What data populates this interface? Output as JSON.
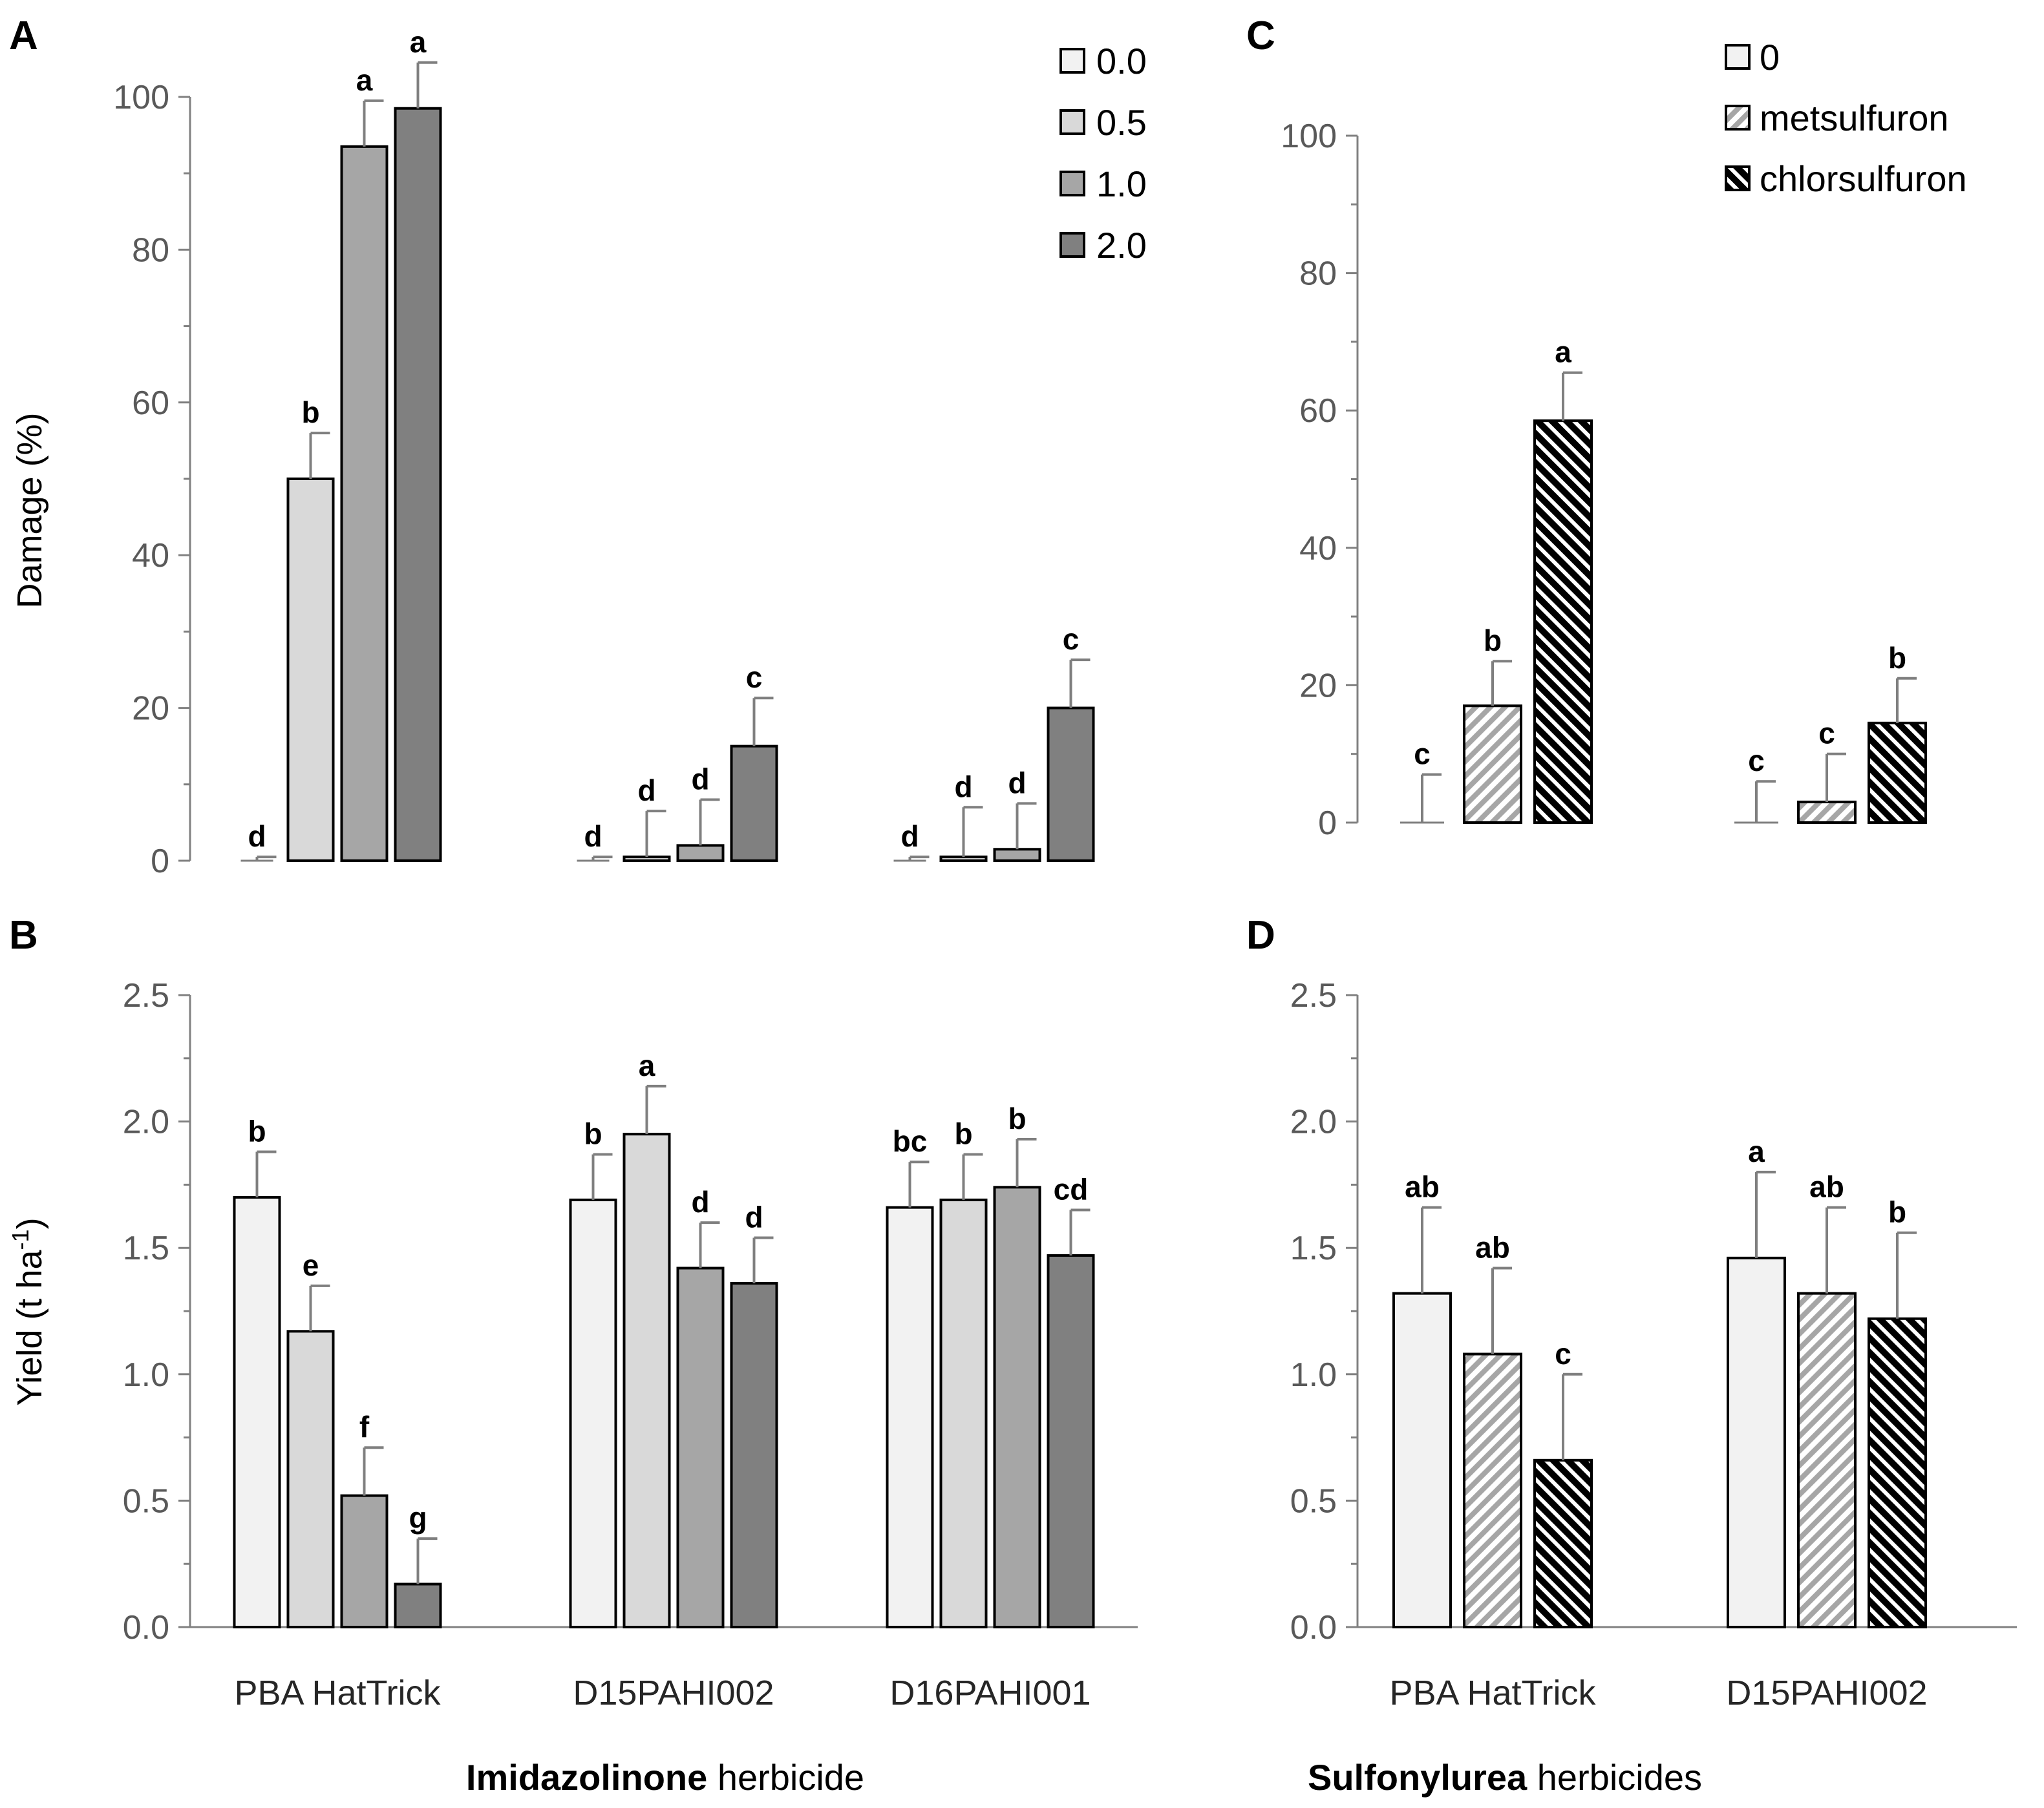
{
  "chart_data": [
    {
      "panel": "A",
      "type": "bar",
      "ylabel": "Damage (%)",
      "ylim": [
        0,
        100
      ],
      "yticks": [
        0,
        20,
        40,
        60,
        80,
        100
      ],
      "categories": [
        "PBA HatTrick",
        "D15PAHI002",
        "D16PAHI001"
      ],
      "legend": [
        "0.0",
        "0.5",
        "1.0",
        "2.0"
      ],
      "series": [
        {
          "name": "0.0",
          "values": [
            0,
            0,
            0
          ],
          "errors": [
            0.5,
            0.5,
            0.5
          ],
          "letters": [
            "d",
            "d",
            "d"
          ]
        },
        {
          "name": "0.5",
          "values": [
            50,
            0.5,
            0.5
          ],
          "errors": [
            6,
            6,
            6.5
          ],
          "letters": [
            "b",
            "d",
            "d"
          ]
        },
        {
          "name": "1.0",
          "values": [
            93.5,
            2,
            1.5
          ],
          "errors": [
            6,
            6,
            6
          ],
          "letters": [
            "a",
            "d",
            "d"
          ]
        },
        {
          "name": "2.0",
          "values": [
            98.5,
            15,
            20
          ],
          "errors": [
            6,
            6.3,
            6.3
          ],
          "letters": [
            "a",
            "c",
            "c"
          ]
        }
      ]
    },
    {
      "panel": "B",
      "type": "bar",
      "ylabel": "Yield (t ha",
      "ylabel_sup": "-1",
      "ylabel_end": ")",
      "ylim": [
        0,
        2.5
      ],
      "yticks": [
        "0.0",
        "0.5",
        "1.0",
        "1.5",
        "2.0",
        "2.5"
      ],
      "categories": [
        "PBA HatTrick",
        "D15PAHI002",
        "D16PAHI001"
      ],
      "xgroup_bold": "Imidazolinone",
      "xgroup_rest": " herbicide",
      "series": [
        {
          "name": "0.0",
          "values": [
            1.7,
            1.69,
            1.66
          ],
          "errors": [
            0.18,
            0.18,
            0.18
          ],
          "letters": [
            "b",
            "b",
            "bc"
          ]
        },
        {
          "name": "0.5",
          "values": [
            1.17,
            1.95,
            1.69
          ],
          "errors": [
            0.18,
            0.19,
            0.18
          ],
          "letters": [
            "e",
            "a",
            "b"
          ]
        },
        {
          "name": "1.0",
          "values": [
            0.52,
            1.42,
            1.74
          ],
          "errors": [
            0.19,
            0.18,
            0.19
          ],
          "letters": [
            "f",
            "d",
            "b"
          ]
        },
        {
          "name": "2.0",
          "values": [
            0.17,
            1.36,
            1.47
          ],
          "errors": [
            0.18,
            0.18,
            0.18
          ],
          "letters": [
            "g",
            "d",
            "cd"
          ]
        }
      ]
    },
    {
      "panel": "C",
      "type": "bar",
      "ylabel": "",
      "ylim": [
        0,
        100
      ],
      "yticks": [
        0,
        20,
        40,
        60,
        80,
        100
      ],
      "categories": [
        "PBA HatTrick",
        "D15PAHI002"
      ],
      "legend": [
        "0",
        "metsulfuron",
        "chlorsulfuron"
      ],
      "series": [
        {
          "name": "0",
          "values": [
            0,
            0
          ],
          "errors": [
            7,
            6
          ],
          "letters": [
            "c",
            "c"
          ]
        },
        {
          "name": "metsulfuron",
          "values": [
            17,
            3
          ],
          "errors": [
            6.5,
            7
          ],
          "letters": [
            "b",
            "c"
          ]
        },
        {
          "name": "chlorsulfuron",
          "values": [
            58.5,
            14.5
          ],
          "errors": [
            7,
            6.5
          ],
          "letters": [
            "a",
            "b"
          ]
        }
      ]
    },
    {
      "panel": "D",
      "type": "bar",
      "ylabel": "",
      "ylim": [
        0,
        2.5
      ],
      "yticks": [
        "0.0",
        "0.5",
        "1.0",
        "1.5",
        "2.0",
        "2.5"
      ],
      "categories": [
        "PBA HatTrick",
        "D15PAHI002"
      ],
      "xgroup_bold": "Sulfonylurea",
      "xgroup_rest": " herbicides",
      "series": [
        {
          "name": "0",
          "values": [
            1.32,
            1.46
          ],
          "errors": [
            0.34,
            0.34
          ],
          "letters": [
            "ab",
            "a"
          ]
        },
        {
          "name": "metsulfuron",
          "values": [
            1.08,
            1.32
          ],
          "errors": [
            0.34,
            0.34
          ],
          "letters": [
            "ab",
            "ab"
          ]
        },
        {
          "name": "chlorsulfuron",
          "values": [
            0.66,
            1.22
          ],
          "errors": [
            0.34,
            0.34
          ],
          "letters": [
            "c",
            "b"
          ]
        }
      ]
    }
  ],
  "colors": {
    "rate_0.0": "#f2f2f2",
    "rate_0.5": "#d9d9d9",
    "rate_1.0": "#a6a6a6",
    "rate_2.0": "#808080",
    "su_0": "#f2f2f2",
    "axis": "#808080",
    "error": "#7f7f7f",
    "outline": "#000000"
  }
}
